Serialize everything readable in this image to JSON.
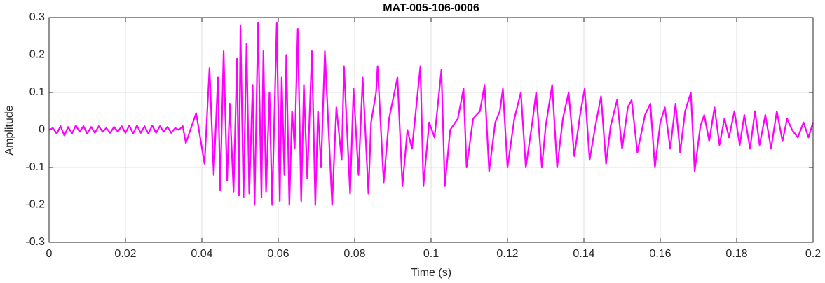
{
  "chart_data": {
    "type": "line",
    "title": "MAT-005-106-0006",
    "xlabel": "Time (s)",
    "ylabel": "Amplitude",
    "x": [
      0,
      0.001,
      0.002,
      0.003,
      0.004,
      0.005,
      0.006,
      0.007,
      0.008,
      0.009,
      0.01,
      0.011,
      0.012,
      0.013,
      0.014,
      0.015,
      0.016,
      0.017,
      0.018,
      0.019,
      0.02,
      0.021,
      0.022,
      0.023,
      0.024,
      0.025,
      0.026,
      0.027,
      0.028,
      0.029,
      0.03,
      0.031,
      0.032,
      0.033,
      0.034,
      0.035,
      0.0358,
      0.0385,
      0.0407,
      0.042,
      0.0431,
      0.0442,
      0.0448,
      0.0457,
      0.0466,
      0.0473,
      0.0483,
      0.0492,
      0.0497,
      0.0501,
      0.0509,
      0.0517,
      0.0524,
      0.0533,
      0.0538,
      0.0547,
      0.0556,
      0.0561,
      0.0568,
      0.0577,
      0.0584,
      0.0596,
      0.0604,
      0.0609,
      0.0616,
      0.0621,
      0.0629,
      0.0636,
      0.0643,
      0.0651,
      0.066,
      0.0667,
      0.0676,
      0.0688,
      0.0697,
      0.0704,
      0.0712,
      0.0722,
      0.0741,
      0.0752,
      0.0766,
      0.0772,
      0.0788,
      0.0797,
      0.081,
      0.0821,
      0.0836,
      0.0843,
      0.0856,
      0.086,
      0.0876,
      0.089,
      0.0912,
      0.0925,
      0.0938,
      0.095,
      0.0972,
      0.098,
      0.0995,
      0.1009,
      0.1027,
      0.1036,
      0.105,
      0.107,
      0.1085,
      0.1093,
      0.111,
      0.1128,
      0.114,
      0.1152,
      0.1168,
      0.118,
      0.1188,
      0.12,
      0.1218,
      0.1235,
      0.1248,
      0.1265,
      0.1275,
      0.129,
      0.13,
      0.1317,
      0.133,
      0.1345,
      0.136,
      0.1375,
      0.139,
      0.1402,
      0.1415,
      0.143,
      0.1445,
      0.1458,
      0.147,
      0.1487,
      0.15,
      0.1515,
      0.1525,
      0.154,
      0.156,
      0.1574,
      0.1586,
      0.16,
      0.1612,
      0.1626,
      0.164,
      0.1652,
      0.1665,
      0.168,
      0.169,
      0.1705,
      0.1715,
      0.1728,
      0.1742,
      0.1755,
      0.1768,
      0.178,
      0.1794,
      0.1808,
      0.182,
      0.1835,
      0.1848,
      0.186,
      0.1875,
      0.189,
      0.1905,
      0.192,
      0.1932,
      0.1945,
      0.196,
      0.1975,
      0.1988,
      0.2
    ],
    "series": [
      {
        "color": "#ff00ff",
        "values": [
          0,
          0.005,
          -0.01,
          0.01,
          -0.015,
          0.008,
          -0.01,
          0.012,
          -0.005,
          0.01,
          -0.01,
          0.008,
          -0.008,
          0.01,
          -0.005,
          0.005,
          -0.008,
          0.008,
          -0.005,
          0.01,
          -0.008,
          0.012,
          -0.01,
          0.012,
          -0.008,
          0.01,
          -0.01,
          0.012,
          -0.008,
          0.01,
          -0.005,
          0.008,
          -0.008,
          0.005,
          0,
          0.01,
          -0.035,
          0.045,
          -0.09,
          0.165,
          -0.12,
          0.14,
          -0.16,
          0.21,
          -0.135,
          0.07,
          -0.165,
          0.19,
          -0.175,
          0.28,
          -0.18,
          0.23,
          -0.17,
          0.12,
          -0.2,
          0.285,
          -0.18,
          0.21,
          -0.165,
          0.1,
          -0.2,
          0.285,
          -0.19,
          0.14,
          -0.12,
          0.2,
          -0.2,
          0.05,
          -0.05,
          0.27,
          -0.19,
          0.12,
          -0.13,
          0.21,
          -0.2,
          0.05,
          -0.1,
          0.21,
          -0.2,
          0.06,
          -0.08,
          0.17,
          -0.17,
          0.11,
          -0.12,
          0.14,
          -0.17,
          0.02,
          0.1,
          0.17,
          -0.14,
          0.03,
          0.14,
          -0.15,
          0,
          -0.05,
          0.17,
          -0.15,
          0.02,
          -0.02,
          0.16,
          -0.15,
          0,
          0.03,
          0.11,
          -0.1,
          0.03,
          0.05,
          0.12,
          -0.11,
          0.02,
          0.05,
          0.11,
          -0.1,
          0.03,
          0.1,
          -0.1,
          0.02,
          0.1,
          -0.1,
          0.01,
          0.12,
          -0.1,
          0.03,
          0.1,
          -0.07,
          0.04,
          0.11,
          -0.08,
          0.01,
          0.09,
          -0.09,
          0.01,
          0.08,
          -0.05,
          0.06,
          0.08,
          -0.06,
          0.04,
          0.07,
          -0.1,
          0.02,
          0.06,
          -0.05,
          0.07,
          -0.06,
          0.05,
          0.1,
          -0.11,
          0.01,
          0.04,
          -0.03,
          0.06,
          -0.04,
          0.03,
          -0.02,
          0.05,
          -0.04,
          0.04,
          -0.05,
          0.05,
          -0.04,
          0.04,
          -0.05,
          0.05,
          -0.03,
          0.03,
          0,
          -0.02,
          0.02,
          -0.02,
          0.02
        ]
      }
    ],
    "xlim": [
      0,
      0.2
    ],
    "xticks": [
      0,
      0.02,
      0.04,
      0.06,
      0.08,
      0.1,
      0.12,
      0.14,
      0.16,
      0.18,
      0.2
    ],
    "ylim": [
      -0.3,
      0.3
    ],
    "yticks": [
      -0.3,
      -0.2,
      -0.1,
      0,
      0.1,
      0.2,
      0.3
    ],
    "grid": true
  }
}
